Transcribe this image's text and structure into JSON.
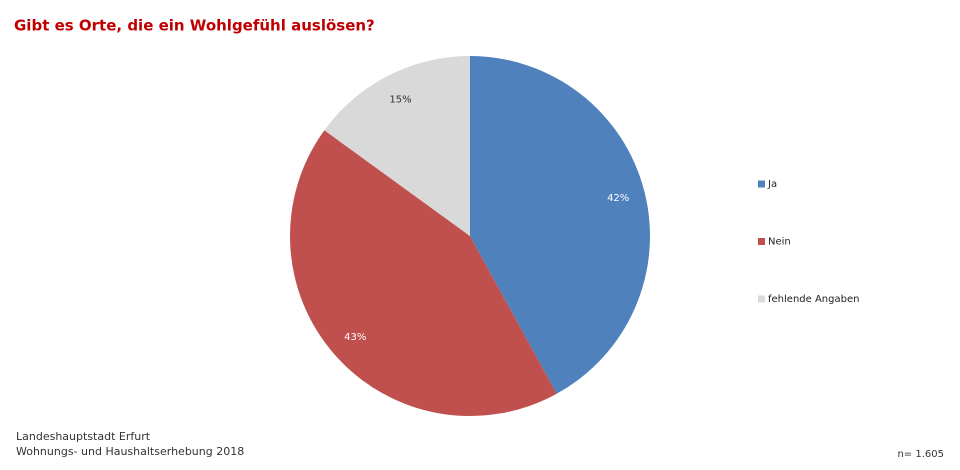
{
  "chart_data": {
    "type": "pie",
    "title": "Gibt es Orte, die ein Wohlgefühl auslösen?",
    "categories": [
      "Ja",
      "Nein",
      "fehlende Angaben"
    ],
    "values": [
      42,
      43,
      15
    ],
    "value_labels": [
      "42%",
      "43%",
      "15%"
    ],
    "colors": [
      "#4f81bd",
      "#c0504d",
      "#d9d9d9"
    ],
    "label_colors": [
      "#ffffff",
      "#ffffff",
      "#333333"
    ],
    "source": [
      "Landeshauptstadt Erfurt",
      "Wohnungs- und Haushaltserhebung 2018"
    ],
    "note": "n= 1.605",
    "legend": "right"
  }
}
